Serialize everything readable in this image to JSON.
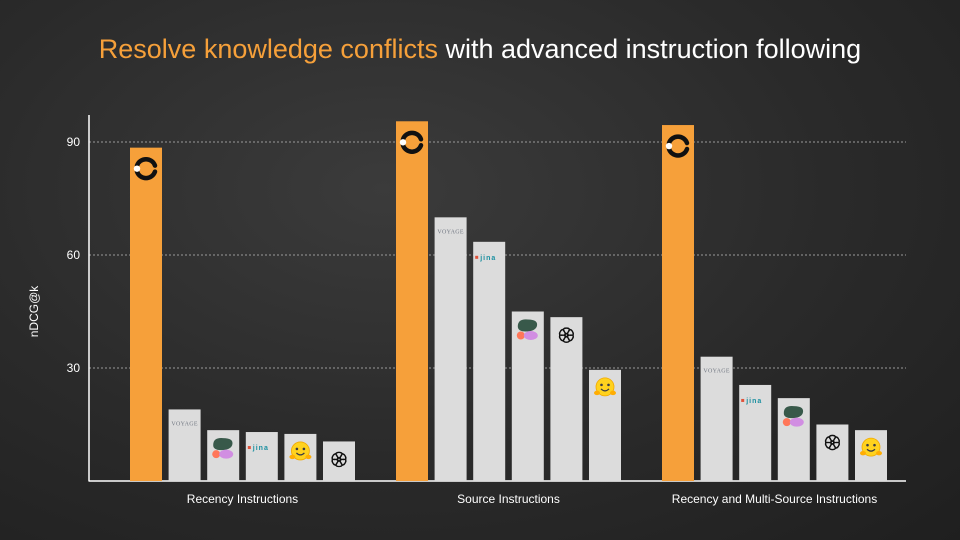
{
  "title": {
    "highlight": "Resolve knowledge conflicts",
    "rest": " with advanced instruction following",
    "highlight_color": "#f6a03a"
  },
  "colors": {
    "primary_bar": "#f6a03a",
    "other_bar": "#dcdcdc",
    "axis": "#ffffff",
    "grid": "#9a9a9a"
  },
  "chart_data": {
    "type": "bar",
    "ylabel": "nDCG@k",
    "xlabel": "",
    "ylim": [
      0,
      97
    ],
    "yticks": [
      30,
      60,
      90
    ],
    "grid": "dashed horizontal at ticks",
    "legend": "none (bars identified by logos)",
    "categories": [
      "Recency Instructions",
      "Source Instructions",
      "Recency and Multi-Source Instructions"
    ],
    "groups": [
      {
        "category": "Recency Instructions",
        "bars": [
          {
            "logo": "contextual-logo-icon",
            "value": 88.5,
            "highlight": true
          },
          {
            "logo": "voyage-logo",
            "value": 19
          },
          {
            "logo": "cohere-logo-icon",
            "value": 13.5
          },
          {
            "logo": "jina-logo",
            "value": 13
          },
          {
            "logo": "huggingface-logo-icon",
            "value": 12.5
          },
          {
            "logo": "openai-logo-icon",
            "value": 10.5
          }
        ]
      },
      {
        "category": "Source Instructions",
        "bars": [
          {
            "logo": "contextual-logo-icon",
            "value": 95.5,
            "highlight": true
          },
          {
            "logo": "voyage-logo",
            "value": 70
          },
          {
            "logo": "jina-logo",
            "value": 63.5
          },
          {
            "logo": "cohere-logo-icon",
            "value": 45
          },
          {
            "logo": "openai-logo-icon",
            "value": 43.5
          },
          {
            "logo": "huggingface-logo-icon",
            "value": 29.5
          }
        ]
      },
      {
        "category": "Recency and Multi-Source Instructions",
        "bars": [
          {
            "logo": "contextual-logo-icon",
            "value": 94.5,
            "highlight": true
          },
          {
            "logo": "voyage-logo",
            "value": 33
          },
          {
            "logo": "jina-logo",
            "value": 25.5
          },
          {
            "logo": "cohere-logo-icon",
            "value": 22
          },
          {
            "logo": "openai-logo-icon",
            "value": 15
          },
          {
            "logo": "huggingface-logo-icon",
            "value": 13.5
          }
        ]
      }
    ]
  },
  "logos": {
    "voyage_text": "VOYAGE",
    "jina_text": "jina"
  }
}
